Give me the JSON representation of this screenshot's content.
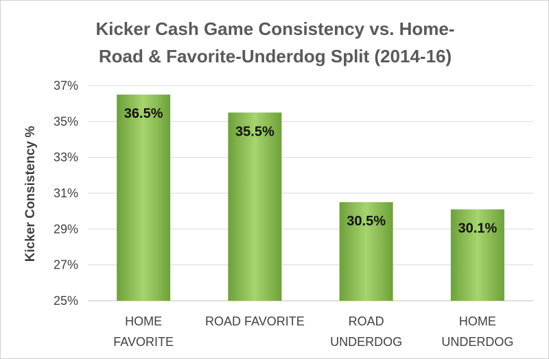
{
  "chart_data": {
    "type": "bar",
    "title_lines": [
      "Kicker Cash Game Consistency vs. Home-",
      "Road & Favorite-Underdog Split (2014-16)"
    ],
    "xlabel": "",
    "ylabel": "Kicker Consistency %",
    "categories": [
      [
        "HOME",
        "FAVORITE"
      ],
      [
        "ROAD FAVORITE"
      ],
      [
        "ROAD",
        "UNDERDOG"
      ],
      [
        "HOME",
        "UNDERDOG"
      ]
    ],
    "values": [
      36.5,
      35.5,
      30.5,
      30.1
    ],
    "data_labels": [
      "36.5%",
      "35.5%",
      "30.5%",
      "30.1%"
    ],
    "ylim": [
      25,
      37
    ],
    "yticks": [
      25,
      27,
      29,
      31,
      33,
      35,
      37
    ],
    "ytick_labels": [
      "25%",
      "27%",
      "29%",
      "31%",
      "33%",
      "35%",
      "37%"
    ],
    "grid": true,
    "legend": "none",
    "colors": {
      "bar_center": "#a6d46f",
      "bar_edge": "#6ea13a",
      "gridline": "#d9d9d9",
      "text": "#404040"
    }
  }
}
